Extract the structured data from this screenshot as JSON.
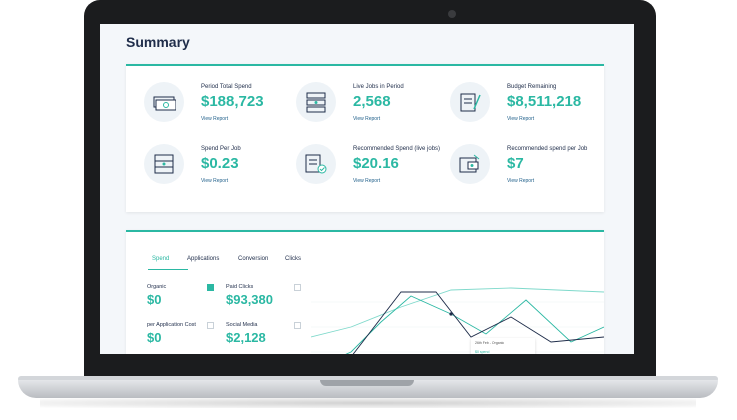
{
  "summary": {
    "title": "Summary",
    "stats": [
      {
        "label": "Period Total Spend",
        "value": "$188,723",
        "link": "View Report",
        "icon": "money-stack-icon"
      },
      {
        "label": "Live Jobs in Period",
        "value": "2,568",
        "link": "View Report",
        "icon": "job-list-icon"
      },
      {
        "label": "Budget Remaining",
        "value": "$8,511,218",
        "link": "View Report",
        "icon": "budget-document-icon"
      },
      {
        "label": "Spend Per Job",
        "value": "$0.23",
        "link": "View Report",
        "icon": "calculator-icon"
      },
      {
        "label": "Recommended Spend (live jobs)",
        "value": "$20.16",
        "link": "View Report",
        "icon": "recommended-document-icon"
      },
      {
        "label": "Recommended spend per Job",
        "value": "$7",
        "link": "View Report",
        "icon": "wallet-icon"
      }
    ]
  },
  "chart_section": {
    "tabs": [
      "Spend",
      "Applications",
      "Conversion",
      "Clicks"
    ],
    "active_tab": "Spend",
    "metrics": [
      {
        "label": "Organic",
        "value": "$0",
        "checked": true
      },
      {
        "label": "Paid Clicks",
        "value": "$93,380",
        "checked": false
      },
      {
        "label": "per Application Cost",
        "value": "$0",
        "checked": false
      },
      {
        "label": "Social Media",
        "value": "$2,128",
        "checked": false
      }
    ],
    "tooltip": {
      "line1": "26th Feb - Organic",
      "line2": "$0 spend"
    }
  },
  "colors": {
    "accent": "#2bb8a3",
    "navy": "#1f2d4a",
    "link": "#1f5f8a"
  }
}
